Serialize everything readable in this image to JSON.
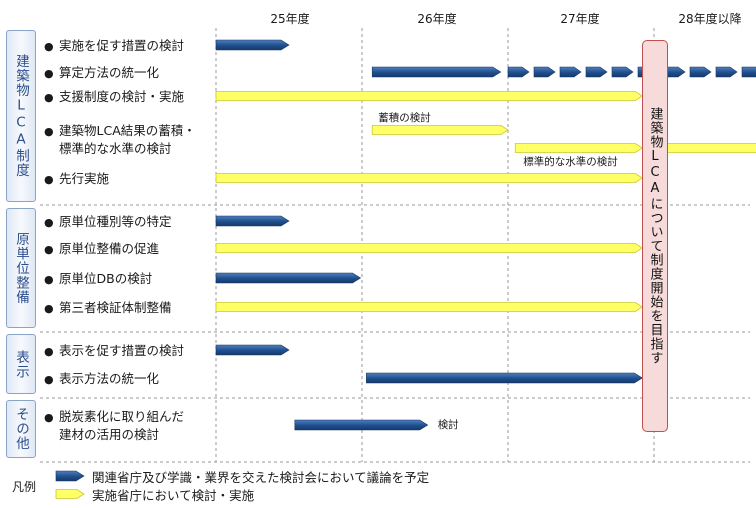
{
  "years": [
    {
      "label": "25年度"
    },
    {
      "label": "26年度"
    },
    {
      "label": "27年度"
    },
    {
      "label": "28年度以降"
    }
  ],
  "categories": [
    {
      "label": "建築物LCA制度",
      "rows": [
        0,
        4
      ]
    },
    {
      "label": "原単位整備",
      "rows": [
        5,
        8
      ]
    },
    {
      "label": "表示",
      "rows": [
        9,
        10
      ]
    },
    {
      "label": "その他",
      "rows": [
        11,
        11
      ]
    }
  ],
  "tasks": [
    {
      "lines": [
        "実施を促す措置の検討"
      ]
    },
    {
      "lines": [
        "算定方法の統一化"
      ]
    },
    {
      "lines": [
        "支援制度の検討・実施"
      ]
    },
    {
      "lines": [
        "建築物LCA結果の蓄積・",
        "標準的な水準の検討"
      ]
    },
    {
      "lines": [
        "先行実施"
      ]
    },
    {
      "lines": [
        "原単位種別等の特定"
      ]
    },
    {
      "lines": [
        "原単位整備の促進"
      ]
    },
    {
      "lines": [
        "原単位DBの検討"
      ]
    },
    {
      "lines": [
        "第三者検証体制整備"
      ]
    },
    {
      "lines": [
        "表示を促す措置の検討"
      ]
    },
    {
      "lines": [
        "表示方法の統一化"
      ]
    },
    {
      "lines": [
        "脱炭素化に取り組んだ",
        "建材の活用の検討"
      ]
    }
  ],
  "bars": [
    {
      "row": 0,
      "type": "council",
      "start": 0.0,
      "end": 0.5
    },
    {
      "row": 1,
      "type": "council",
      "start": 1.07,
      "end": 1.95
    },
    {
      "row": 1,
      "type": "council_continued",
      "start": 2.0,
      "end": 3.9
    },
    {
      "row": 2,
      "type": "ministry",
      "start": 0.0,
      "end": 2.92
    },
    {
      "row": 3,
      "type": "ministry",
      "start": 1.07,
      "end": 2.0,
      "offset": -9,
      "note": "蓄積の検討",
      "note_pos": "above"
    },
    {
      "row": 3,
      "type": "ministry",
      "start": 2.05,
      "end": 2.92,
      "offset": 9,
      "note": "標準的な水準の検討",
      "note_pos": "below"
    },
    {
      "row": 3,
      "type": "ministry",
      "start": 3.08,
      "end": 3.9,
      "offset": 9
    },
    {
      "row": 4,
      "type": "ministry",
      "start": 0.0,
      "end": 2.92
    },
    {
      "row": 5,
      "type": "council",
      "start": 0.0,
      "end": 0.5
    },
    {
      "row": 6,
      "type": "ministry",
      "start": 0.0,
      "end": 2.92
    },
    {
      "row": 7,
      "type": "council",
      "start": 0.0,
      "end": 0.99
    },
    {
      "row": 8,
      "type": "ministry",
      "start": 0.0,
      "end": 2.92
    },
    {
      "row": 9,
      "type": "council",
      "start": 0.0,
      "end": 0.5
    },
    {
      "row": 10,
      "type": "council",
      "start": 1.03,
      "end": 2.92
    },
    {
      "row": 11,
      "type": "council",
      "start": 0.54,
      "end": 1.45,
      "note": "検討",
      "note_pos": "right"
    }
  ],
  "goal": {
    "text": "建築物LCAについて制度開始を目指す"
  },
  "legend": {
    "title": "凡例",
    "items": [
      {
        "type": "council",
        "text": "関連省庁及び学識・業界を交えた検討会において議論を予定"
      },
      {
        "type": "ministry",
        "text": "実施省庁において検討・実施"
      }
    ]
  },
  "colors": {
    "council": "#1f4e8c",
    "ministry": "#ffff66",
    "ministry_border": "#c9c930",
    "grid": "#999999",
    "goal_border": "#c0504d",
    "goal_fill": "#f7dada"
  }
}
